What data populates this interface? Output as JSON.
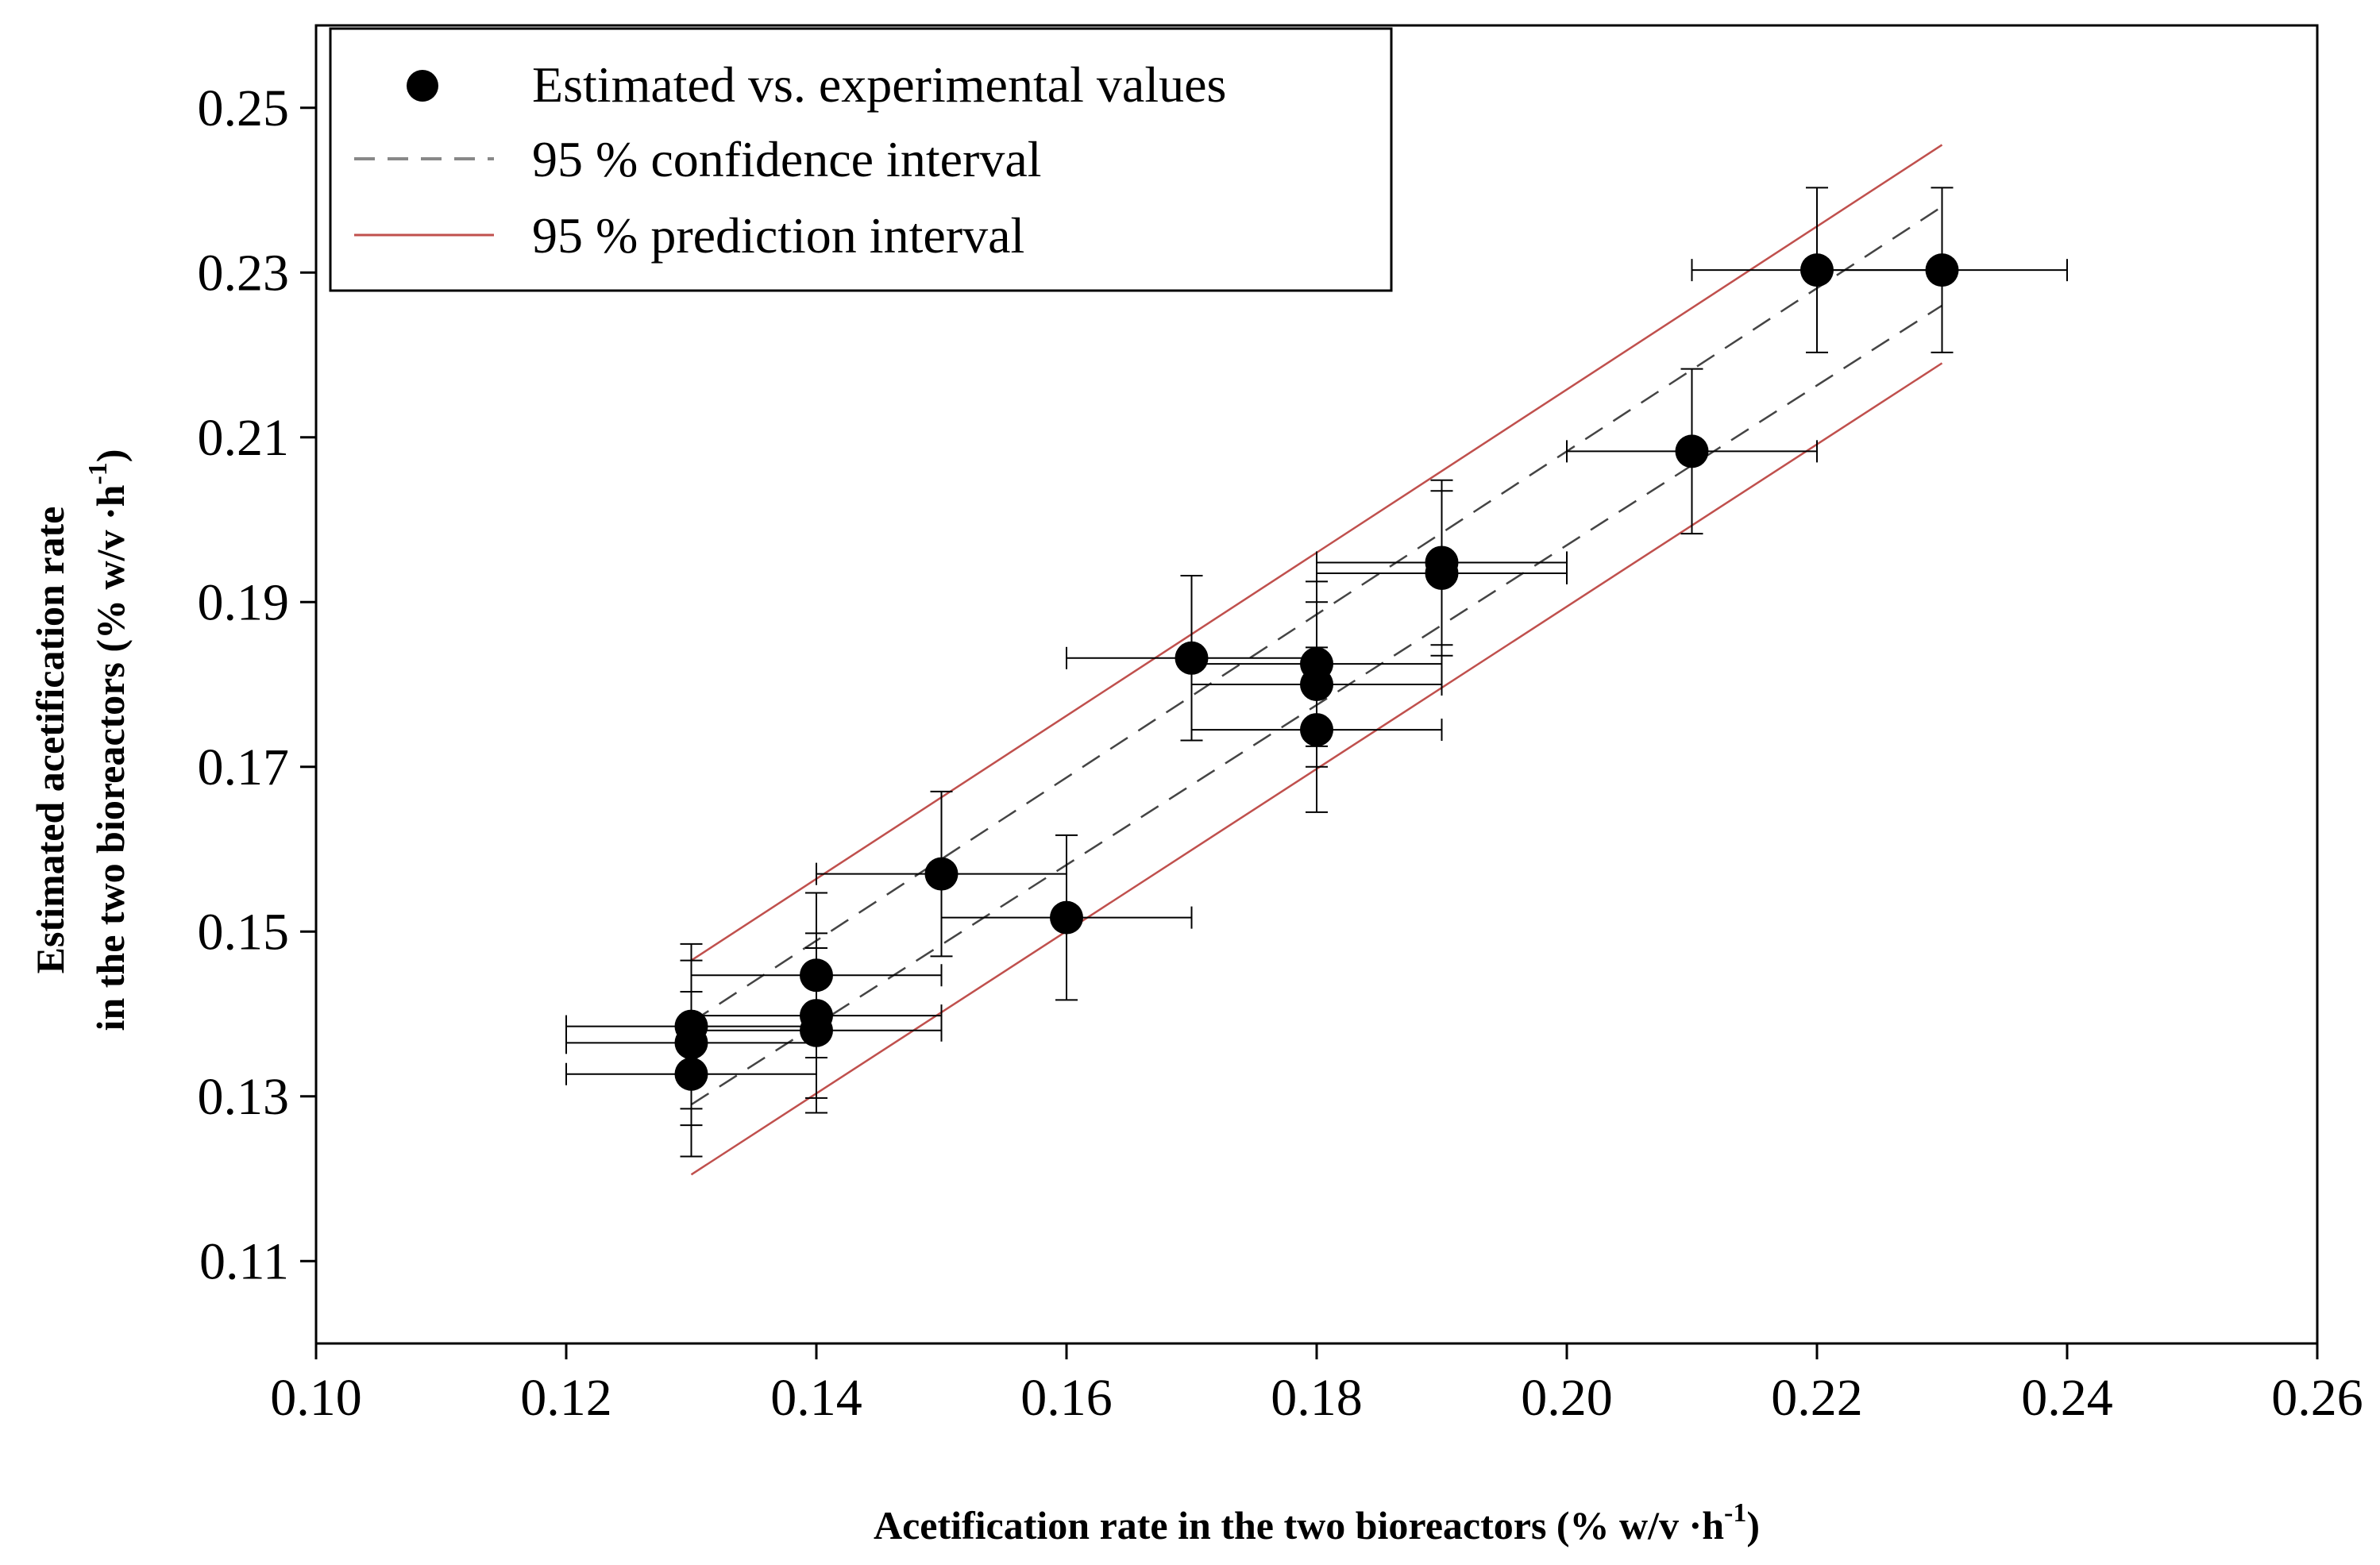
{
  "chart_data": {
    "type": "scatter",
    "title": "",
    "xlabel": "Acetification rate in the two bioreactors (% w/v ·h",
    "xlabel_sup": "-1",
    "xlabel_close": ")",
    "ylabel_line1": "Estimated acetification rate",
    "ylabel_line2": "in the two bioreactors (% w/v ·h",
    "ylabel_sup": "-1",
    "ylabel_close": ")",
    "xlim": [
      0.1,
      0.26
    ],
    "ylim": [
      0.1,
      0.26
    ],
    "x_ticks": [
      0.1,
      0.12,
      0.14,
      0.16,
      0.18,
      0.2,
      0.22,
      0.24,
      0.26
    ],
    "x_tick_labels": [
      "0.10",
      "0.12",
      "0.14",
      "0.16",
      "0.18",
      "0.20",
      "0.22",
      "0.24",
      "0.26"
    ],
    "y_ticks": [
      0.11,
      0.13,
      0.15,
      0.17,
      0.19,
      0.21,
      0.23,
      0.25
    ],
    "y_tick_labels": [
      "0.11",
      "0.13",
      "0.15",
      "0.17",
      "0.19",
      "0.21",
      "0.23",
      "0.25"
    ],
    "grid": false,
    "legend_position": "top-left",
    "legend": [
      {
        "label": "Estimated vs. experimental values",
        "symbol": "marker"
      },
      {
        "label": "95 % confidence interval",
        "symbol": "dashed-line"
      },
      {
        "label": "95 % prediction interval",
        "symbol": "solid-line"
      }
    ],
    "colors": {
      "points": "#000000",
      "error_bars": "#000000",
      "confidence_interval": "#444444",
      "prediction_interval": "#c0504d",
      "legend_dash": "#888888"
    },
    "series": [
      {
        "name": "Estimated vs. experimental values",
        "points": [
          {
            "x": 0.13,
            "y": 0.1327,
            "xerr": 0.01,
            "yerr": 0.01
          },
          {
            "x": 0.13,
            "y": 0.1365,
            "xerr": 0.01,
            "yerr": 0.01
          },
          {
            "x": 0.13,
            "y": 0.1385,
            "xerr": 0.01,
            "yerr": 0.01
          },
          {
            "x": 0.14,
            "y": 0.138,
            "xerr": 0.01,
            "yerr": 0.01
          },
          {
            "x": 0.14,
            "y": 0.1398,
            "xerr": 0.01,
            "yerr": 0.01
          },
          {
            "x": 0.14,
            "y": 0.1447,
            "xerr": 0.01,
            "yerr": 0.01
          },
          {
            "x": 0.15,
            "y": 0.157,
            "xerr": 0.01,
            "yerr": 0.01
          },
          {
            "x": 0.16,
            "y": 0.1517,
            "xerr": 0.01,
            "yerr": 0.01
          },
          {
            "x": 0.17,
            "y": 0.1832,
            "xerr": 0.01,
            "yerr": 0.01
          },
          {
            "x": 0.18,
            "y": 0.1745,
            "xerr": 0.01,
            "yerr": 0.01
          },
          {
            "x": 0.18,
            "y": 0.18,
            "xerr": 0.01,
            "yerr": 0.01
          },
          {
            "x": 0.18,
            "y": 0.1825,
            "xerr": 0.01,
            "yerr": 0.01
          },
          {
            "x": 0.19,
            "y": 0.1935,
            "xerr": 0.01,
            "yerr": 0.01
          },
          {
            "x": 0.19,
            "y": 0.1948,
            "xerr": 0.01,
            "yerr": 0.01
          },
          {
            "x": 0.21,
            "y": 0.2083,
            "xerr": 0.01,
            "yerr": 0.01
          },
          {
            "x": 0.22,
            "y": 0.2303,
            "xerr": 0.01,
            "yerr": 0.01
          },
          {
            "x": 0.23,
            "y": 0.2303,
            "xerr": 0.01,
            "yerr": 0.01
          }
        ]
      }
    ],
    "intervals": [
      {
        "name": "95 % confidence interval",
        "kind": "upper",
        "style": "dashed",
        "x": [
          0.13,
          0.23
        ],
        "y": [
          0.139,
          0.238
        ]
      },
      {
        "name": "95 % confidence interval",
        "kind": "lower",
        "style": "dashed",
        "x": [
          0.13,
          0.23
        ],
        "y": [
          0.129,
          0.226
        ]
      },
      {
        "name": "95 % prediction interval",
        "kind": "upper",
        "style": "solid",
        "x": [
          0.13,
          0.23
        ],
        "y": [
          0.1465,
          0.2455
        ]
      },
      {
        "name": "95 % prediction interval",
        "kind": "lower",
        "style": "solid",
        "x": [
          0.13,
          0.23
        ],
        "y": [
          0.1205,
          0.219
        ]
      }
    ]
  }
}
